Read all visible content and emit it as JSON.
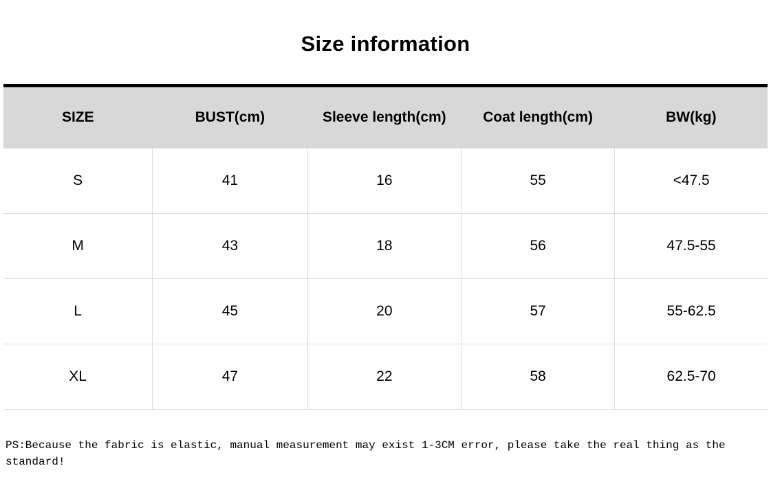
{
  "page": {
    "title": "Size information",
    "note": "PS:Because the fabric is elastic, manual measurement may exist 1-3CM error, please take the real thing as the standard!"
  },
  "colors": {
    "header_background": "#d8d8d8",
    "table_border": "#dcdcdc",
    "top_rule": "#000000",
    "text": "#000000",
    "page_background": "#ffffff"
  },
  "chart_data": {
    "type": "table",
    "title": "Size information",
    "columns": [
      "SIZE",
      "BUST(cm)",
      "Sleeve length(cm)",
      "Coat length(cm)",
      "BW(kg)"
    ],
    "rows": [
      [
        "S",
        "41",
        "16",
        "55",
        "<47.5"
      ],
      [
        "M",
        "43",
        "18",
        "56",
        "47.5-55"
      ],
      [
        "L",
        "45",
        "20",
        "57",
        "55-62.5"
      ],
      [
        "XL",
        "47",
        "22",
        "58",
        "62.5-70"
      ]
    ],
    "note": "PS:Because the fabric is elastic, manual measurement may exist 1-3CM error, please take the real thing as the standard!",
    "layout": {
      "header_row_shaded": true,
      "grid": "light-gray body grid, heavy black rule above header",
      "title_position": "top-center",
      "note_position": "bottom-left"
    }
  }
}
